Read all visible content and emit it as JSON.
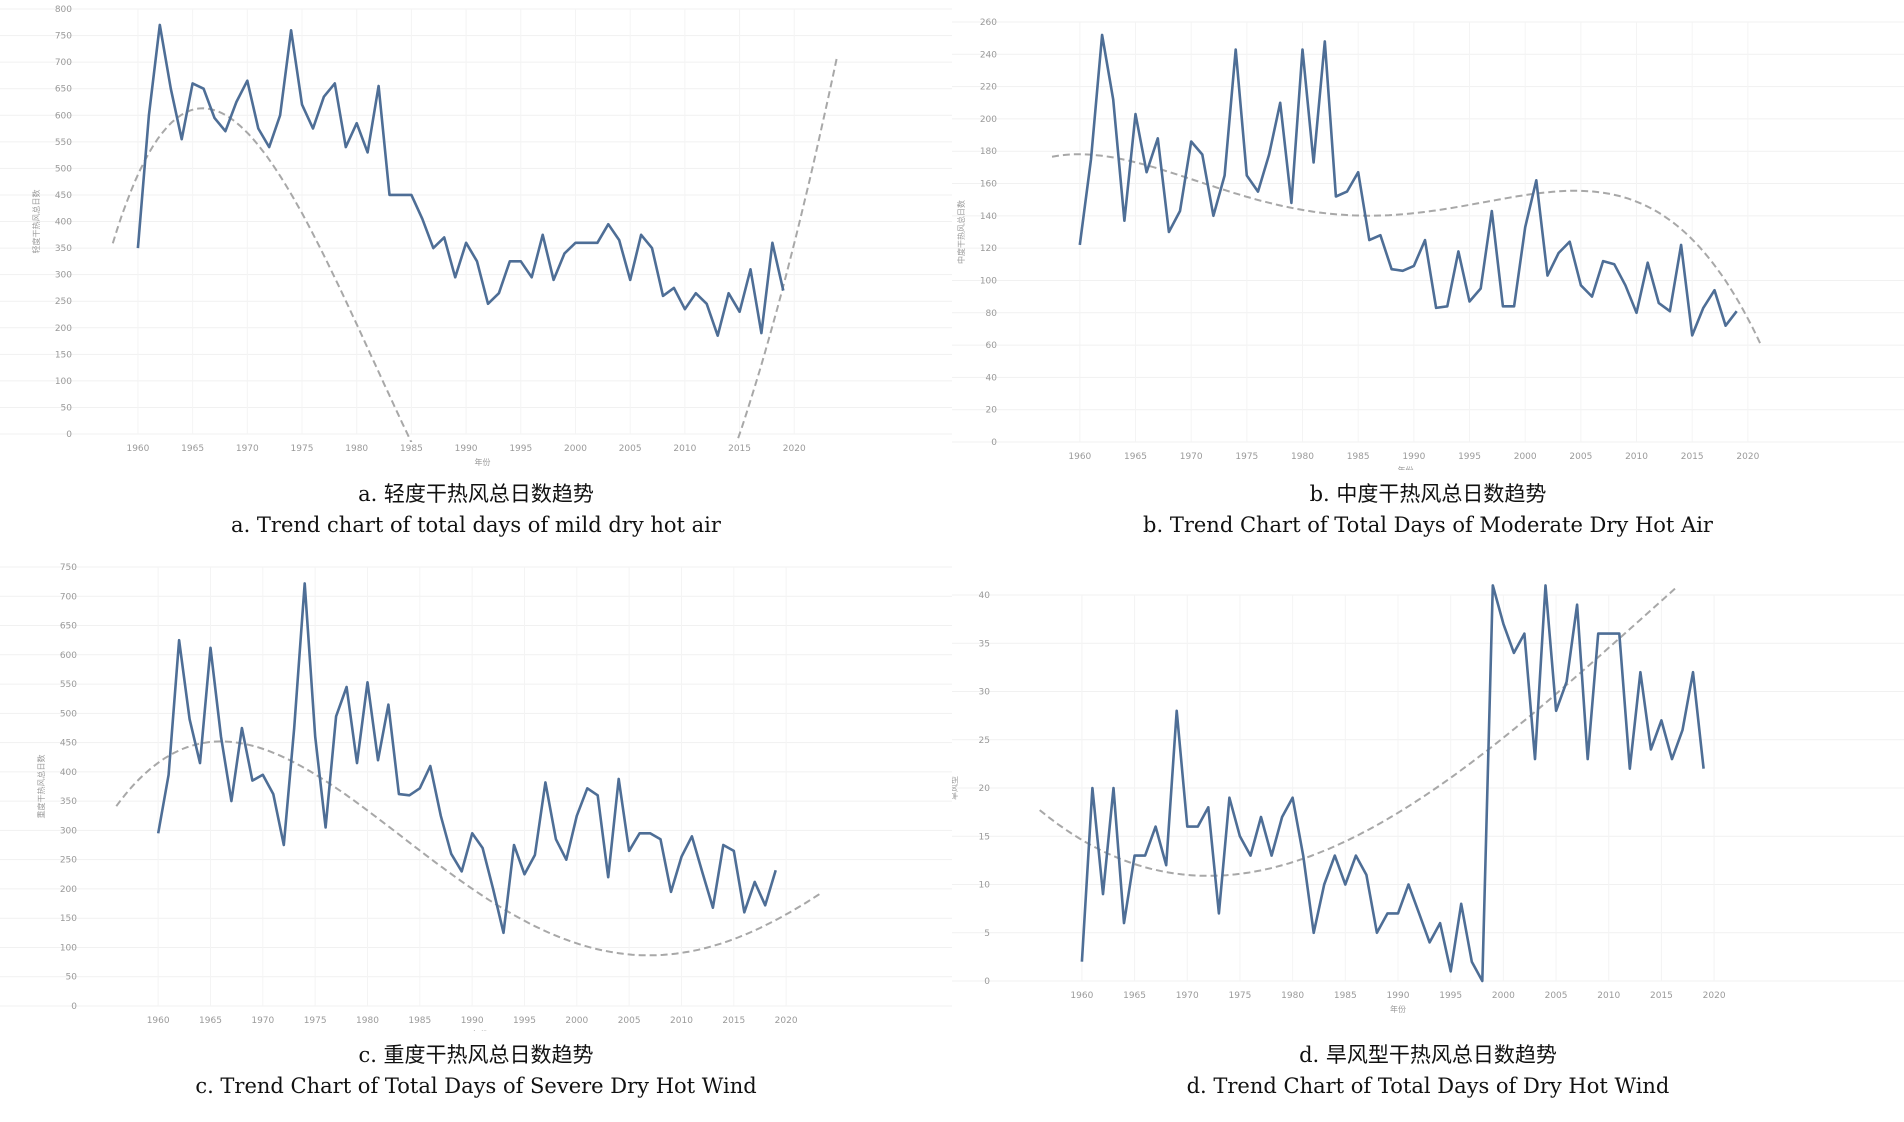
{
  "chart_data": [
    {
      "type": "line",
      "title": "a. 轻度干热风总日数趋势",
      "subtitle": "a. Trend chart of total days of mild dry hot air",
      "xlabel": "年份",
      "ylabel": "轻度干热风总日数",
      "xticks": [
        1960,
        1965,
        1970,
        1975,
        1980,
        1985,
        1990,
        1995,
        2000,
        2005,
        2010,
        2015,
        2020
      ],
      "yticks": [
        0,
        50,
        100,
        150,
        200,
        250,
        300,
        350,
        400,
        450,
        500,
        550,
        600,
        650,
        700,
        750,
        800
      ],
      "xlim": [
        1959,
        2024
      ],
      "ylim": [
        0,
        800
      ],
      "grid": true,
      "line_color": "#4e6e96",
      "trend_color": "#a8a8a8",
      "x": [
        1960,
        1961,
        1962,
        1963,
        1964,
        1965,
        1966,
        1967,
        1968,
        1969,
        1970,
        1971,
        1972,
        1973,
        1974,
        1975,
        1976,
        1977,
        1978,
        1979,
        1980,
        1981,
        1982,
        1983,
        1984,
        1985,
        1986,
        1987,
        1988,
        1989,
        1990,
        1991,
        1992,
        1993,
        1994,
        1995,
        1996,
        1997,
        1998,
        1999,
        2000,
        2001,
        2002,
        2003,
        2004,
        2005,
        2006,
        2007,
        2008,
        2009,
        2010,
        2011,
        2012,
        2013,
        2014,
        2015,
        2016,
        2017,
        2018,
        2019
      ],
      "values": [
        350,
        600,
        770,
        650,
        555,
        660,
        650,
        595,
        570,
        625,
        665,
        575,
        540,
        600,
        760,
        620,
        575,
        635,
        660,
        540,
        585,
        530,
        655,
        450,
        450,
        450,
        405,
        350,
        370,
        295,
        360,
        325,
        245,
        265,
        325,
        325,
        295,
        375,
        290,
        340,
        360,
        360,
        360,
        395,
        365,
        290,
        375,
        350,
        260,
        275,
        235,
        265,
        245,
        185,
        265,
        230,
        310,
        190,
        360,
        270
      ],
      "trend_x": [
        1957.7,
        2023.9
      ],
      "trend_coeffs": [
        613,
        -0.5,
        -3.06,
        0.0792,
        -0.000444
      ],
      "trend_x0": 1966
    },
    {
      "type": "line",
      "title": "b. 中度干热风总日数趋势",
      "subtitle": "b. Trend Chart of Total Days of Moderate Dry Hot Air",
      "xlabel": "年份",
      "ylabel": "中度干热风总日数",
      "xticks": [
        1960,
        1965,
        1970,
        1975,
        1980,
        1985,
        1990,
        1995,
        2000,
        2005,
        2010,
        2015,
        2020
      ],
      "yticks": [
        0,
        20,
        40,
        60,
        80,
        100,
        120,
        140,
        160,
        180,
        200,
        220,
        240,
        260
      ],
      "xlim": [
        1957.5,
        2021
      ],
      "ylim": [
        0,
        260
      ],
      "grid": true,
      "line_color": "#4e6e96",
      "trend_color": "#a8a8a8",
      "x": [
        1960,
        1961,
        1962,
        1963,
        1964,
        1965,
        1966,
        1967,
        1968,
        1969,
        1970,
        1971,
        1972,
        1973,
        1974,
        1975,
        1976,
        1977,
        1978,
        1979,
        1980,
        1981,
        1982,
        1983,
        1984,
        1985,
        1986,
        1987,
        1988,
        1989,
        1990,
        1991,
        1992,
        1993,
        1994,
        1995,
        1996,
        1997,
        1998,
        1999,
        2000,
        2001,
        2002,
        2003,
        2004,
        2005,
        2006,
        2007,
        2008,
        2009,
        2010,
        2011,
        2012,
        2013,
        2014,
        2015,
        2016,
        2017,
        2018,
        2019
      ],
      "values": [
        122,
        175,
        252,
        212,
        137,
        203,
        167,
        188,
        130,
        143,
        186,
        178,
        140,
        165,
        243,
        165,
        155,
        178,
        210,
        148,
        243,
        173,
        248,
        152,
        155,
        167,
        125,
        128,
        107,
        106,
        109,
        125,
        83,
        84,
        118,
        87,
        95,
        143,
        84,
        84,
        133,
        162,
        103,
        117,
        124,
        97,
        90,
        112,
        110,
        97,
        80,
        111,
        86,
        81,
        122,
        66,
        83,
        94,
        72,
        81
      ],
      "trend_x": [
        1957.5,
        2021.2
      ],
      "trend_coeffs": [
        176.6,
        1.32,
        -0.3113,
        0.010645,
        -0.0001026
      ],
      "trend_x0": 1957.5
    },
    {
      "type": "line",
      "title": "c. 重度干热风总日数趋势",
      "subtitle": "c. Trend Chart of Total Days of Severe Dry Hot Wind",
      "xlabel": "年份",
      "ylabel": "重度干热风总日数",
      "xticks": [
        1960,
        1965,
        1970,
        1975,
        1980,
        1985,
        1990,
        1995,
        2000,
        2005,
        2010,
        2015,
        2020
      ],
      "yticks": [
        0,
        50,
        100,
        150,
        200,
        250,
        300,
        350,
        400,
        450,
        500,
        550,
        600,
        650,
        700,
        750
      ],
      "xlim": [
        1957.5,
        2024
      ],
      "ylim": [
        0,
        750
      ],
      "grid": true,
      "line_color": "#4e6e96",
      "trend_color": "#a8a8a8",
      "x": [
        1960,
        1961,
        1962,
        1963,
        1964,
        1965,
        1966,
        1967,
        1968,
        1969,
        1970,
        1971,
        1972,
        1973,
        1974,
        1975,
        1976,
        1977,
        1978,
        1979,
        1980,
        1981,
        1982,
        1983,
        1984,
        1985,
        1986,
        1987,
        1988,
        1989,
        1990,
        1991,
        1992,
        1993,
        1994,
        1995,
        1996,
        1997,
        1998,
        1999,
        2000,
        2001,
        2002,
        2003,
        2004,
        2005,
        2006,
        2007,
        2008,
        2009,
        2010,
        2011,
        2012,
        2013,
        2014,
        2015,
        2016,
        2017,
        2018,
        2019
      ],
      "values": [
        295,
        395,
        625,
        490,
        415,
        612,
        460,
        350,
        475,
        385,
        395,
        362,
        275,
        475,
        722,
        460,
        305,
        495,
        545,
        415,
        553,
        420,
        515,
        362,
        360,
        372,
        410,
        325,
        260,
        230,
        295,
        270,
        200,
        125,
        275,
        225,
        258,
        382,
        285,
        250,
        325,
        372,
        360,
        220,
        388,
        265,
        295,
        295,
        285,
        195,
        255,
        290,
        228,
        168,
        275,
        265,
        160,
        212,
        172,
        232
      ],
      "trend_x": [
        1956,
        2023.4
      ],
      "trend_coeffs": [
        452,
        0,
        -0.878,
        0.02157,
        -0.0001331
      ],
      "trend_x0": 1966
    },
    {
      "type": "line",
      "title": "d. 旱风型干热风总日数趋势",
      "subtitle": "d. Trend Chart of Total Days of Dry Hot Wind",
      "xlabel": "年份",
      "ylabel": "旱风型",
      "xticks": [
        1960,
        1965,
        1970,
        1975,
        1980,
        1985,
        1990,
        1995,
        2000,
        2005,
        2010,
        2015,
        2020
      ],
      "yticks": [
        0,
        5,
        10,
        15,
        20,
        25,
        30,
        35,
        40
      ],
      "xlim": [
        1956.5,
        2023.5
      ],
      "ylim": [
        0,
        40
      ],
      "grid": true,
      "line_color": "#4e6e96",
      "trend_color": "#a8a8a8",
      "x": [
        1960,
        1961,
        1962,
        1963,
        1964,
        1965,
        1966,
        1967,
        1968,
        1969,
        1970,
        1971,
        1972,
        1973,
        1974,
        1975,
        1976,
        1977,
        1978,
        1979,
        1980,
        1981,
        1982,
        1983,
        1984,
        1985,
        1986,
        1987,
        1988,
        1989,
        1990,
        1991,
        1992,
        1993,
        1994,
        1995,
        1996,
        1997,
        1998,
        1999,
        2000,
        2001,
        2002,
        2003,
        2004,
        2005,
        2006,
        2007,
        2008,
        2009,
        2010,
        2011,
        2012,
        2013,
        2014,
        2015,
        2016,
        2017,
        2018,
        2019
      ],
      "values": [
        2,
        20,
        9,
        20,
        6,
        13,
        13,
        16,
        12,
        28,
        16,
        16,
        18,
        7,
        19,
        15,
        13,
        17,
        13,
        17,
        19,
        13,
        5,
        10,
        13,
        10,
        13,
        11,
        5,
        7,
        7,
        10,
        7,
        4,
        6,
        1,
        8,
        2,
        0,
        41,
        37,
        34,
        36,
        23,
        41,
        28,
        31,
        39,
        23,
        36,
        36,
        36,
        22,
        32,
        24,
        27,
        23,
        26,
        32,
        22
      ],
      "trend_x": [
        1956,
        2023.5
      ],
      "trend_coeffs": [
        10.9,
        0,
        0.02357,
        -0.0001897,
        0
      ],
      "trend_x0": 1972
    }
  ]
}
